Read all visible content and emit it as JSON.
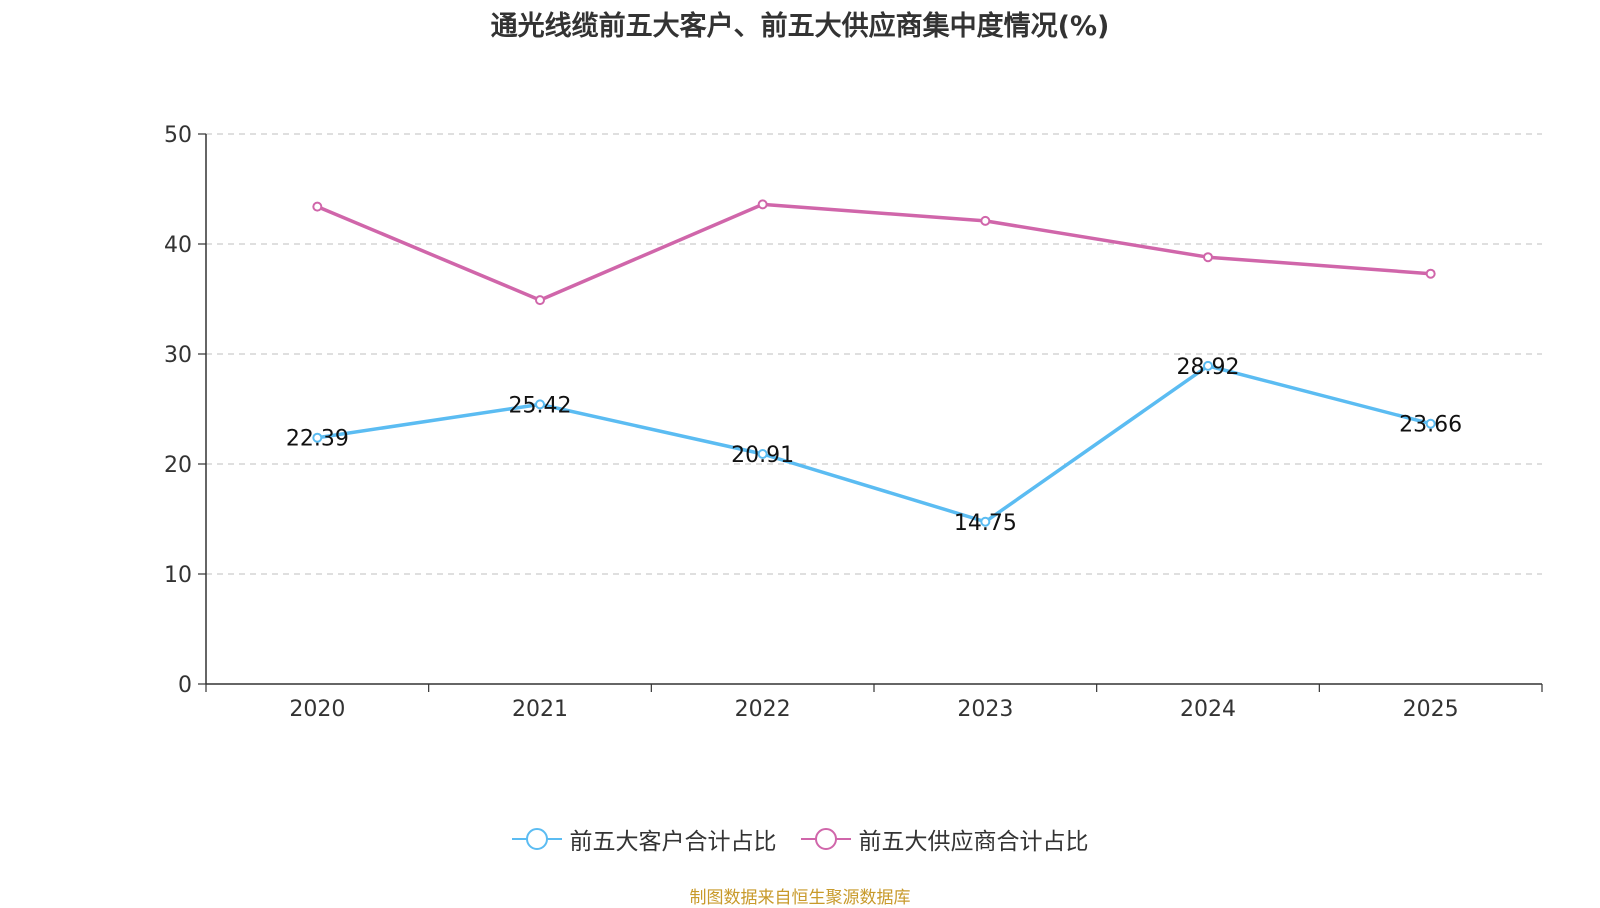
{
  "chart_data": {
    "type": "line",
    "title": "通光线缆前五大客户、前五大供应商集中度情况(%)",
    "categories": [
      "2020",
      "2021",
      "2022",
      "2023",
      "2024",
      "2025"
    ],
    "ylim": [
      0,
      50
    ],
    "yticks": [
      0,
      10,
      20,
      30,
      40,
      50
    ],
    "grid": true,
    "legend_position": "bottom",
    "series": [
      {
        "name": "前五大客户合计占比",
        "color": "#5bbcf2",
        "values": [
          22.39,
          25.42,
          20.91,
          14.75,
          28.92,
          23.66
        ],
        "labels": [
          "22.39",
          "25.42",
          "20.91",
          "14.75",
          "28.92",
          "23.66"
        ]
      },
      {
        "name": "前五大供应商合计占比",
        "color": "#d066aa",
        "values": [
          43.4,
          34.9,
          43.6,
          42.1,
          38.8,
          37.3
        ]
      }
    ]
  },
  "source": "制图数据来自恒生聚源数据库"
}
